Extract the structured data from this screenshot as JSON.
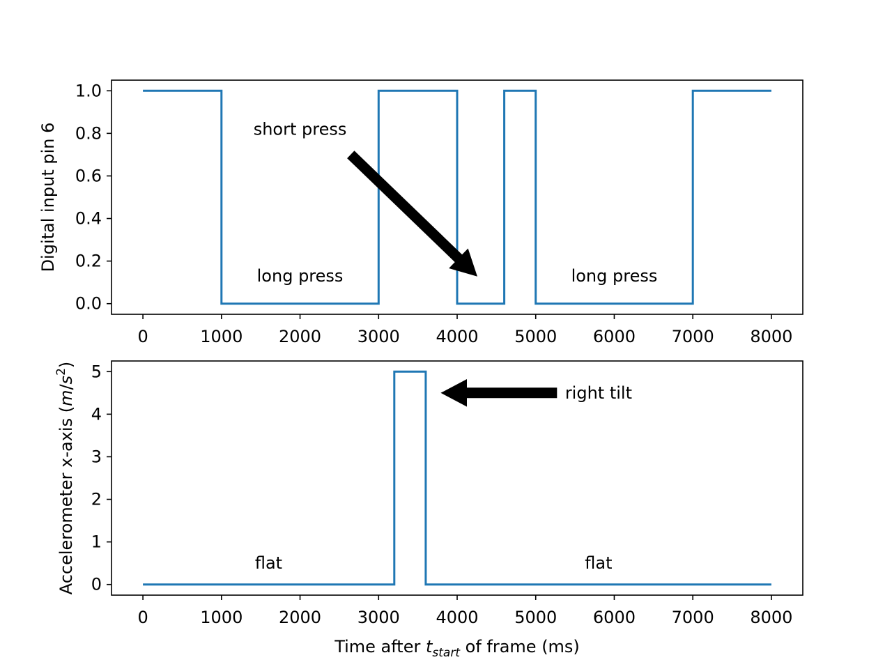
{
  "colors": {
    "series": "#1f77b4",
    "axes": "#000000",
    "arrow": "#000000",
    "background": "#ffffff"
  },
  "chart_data": [
    {
      "type": "line",
      "drawstyle": "step",
      "x": [
        0,
        1000,
        1000,
        3000,
        3000,
        4000,
        4000,
        4600,
        4600,
        5000,
        5000,
        7000,
        7000,
        8000
      ],
      "y": [
        1,
        1,
        0,
        0,
        1,
        1,
        0,
        0,
        1,
        1,
        0,
        0,
        1,
        1
      ],
      "xlim": [
        -400,
        8400
      ],
      "ylim": [
        -0.05,
        1.05
      ],
      "xticks": [
        "0",
        "1000",
        "2000",
        "3000",
        "4000",
        "5000",
        "6000",
        "7000",
        "8000"
      ],
      "yticks": [
        "0.0",
        "0.2",
        "0.4",
        "0.6",
        "0.8",
        "1.0"
      ],
      "xlabel": "",
      "ylabel": "Digital input pin 6",
      "grid": false,
      "annotations": [
        {
          "text": "long press",
          "x": 2000,
          "y": 0.13
        },
        {
          "text": "short press",
          "x": 2000,
          "y": 0.82,
          "arrow_to": {
            "x": 4250,
            "y": 0.13
          }
        },
        {
          "text": "long press",
          "x": 6000,
          "y": 0.13
        }
      ]
    },
    {
      "type": "line",
      "drawstyle": "step",
      "x": [
        0,
        3200,
        3200,
        3600,
        3600,
        8000
      ],
      "y": [
        0,
        0,
        5,
        5,
        0,
        0
      ],
      "xlim": [
        -400,
        8400
      ],
      "ylim": [
        -0.25,
        5.25
      ],
      "xticks": [
        "0",
        "1000",
        "2000",
        "3000",
        "4000",
        "5000",
        "6000",
        "7000",
        "8000"
      ],
      "yticks": [
        "0",
        "1",
        "2",
        "3",
        "4",
        "5"
      ],
      "xlabel": {
        "prefix": "Time after ",
        "var": "t",
        "sub": "start",
        "suffix": " of frame (ms)"
      },
      "ylabel": {
        "prefix": "Accelerometer x-axis (",
        "var_m": "m",
        "slash": "/",
        "var_s": "s",
        "sup": "2",
        "suffix": ")"
      },
      "grid": false,
      "annotations": [
        {
          "text": "flat",
          "x": 1600,
          "y": 0.5
        },
        {
          "text": "right tilt",
          "x": 5800,
          "y": 4.5,
          "arrow_to": {
            "x": 3800,
            "y": 4.5
          }
        },
        {
          "text": "flat",
          "x": 5800,
          "y": 0.5
        }
      ]
    }
  ]
}
